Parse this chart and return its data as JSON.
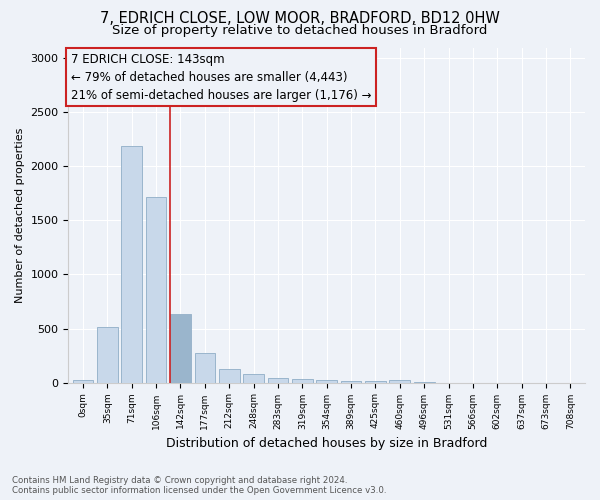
{
  "title1": "7, EDRICH CLOSE, LOW MOOR, BRADFORD, BD12 0HW",
  "title2": "Size of property relative to detached houses in Bradford",
  "xlabel": "Distribution of detached houses by size in Bradford",
  "ylabel": "Number of detached properties",
  "annotation_title": "7 EDRICH CLOSE: 143sqm",
  "annotation_line2": "← 79% of detached houses are smaller (4,443)",
  "annotation_line3": "21% of semi-detached houses are larger (1,176) →",
  "footer1": "Contains HM Land Registry data © Crown copyright and database right 2024.",
  "footer2": "Contains public sector information licensed under the Open Government Licence v3.0.",
  "categories": [
    "0sqm",
    "35sqm",
    "71sqm",
    "106sqm",
    "142sqm",
    "177sqm",
    "212sqm",
    "248sqm",
    "283sqm",
    "319sqm",
    "354sqm",
    "389sqm",
    "425sqm",
    "460sqm",
    "496sqm",
    "531sqm",
    "566sqm",
    "602sqm",
    "637sqm",
    "673sqm",
    "708sqm"
  ],
  "values": [
    20,
    510,
    2190,
    1720,
    630,
    270,
    130,
    80,
    45,
    30,
    20,
    15,
    10,
    25,
    8,
    0,
    0,
    0,
    0,
    0,
    0
  ],
  "bar_color": "#c8d8ea",
  "bar_edge_color": "#9ab5cc",
  "highlight_bar_index": 4,
  "highlight_bar_color": "#9ab5cc",
  "highlight_bar_edge_color": "#9ab5cc",
  "vline_color": "#cc2222",
  "vline_index": 4,
  "ylim": [
    0,
    3100
  ],
  "yticks": [
    0,
    500,
    1000,
    1500,
    2000,
    2500,
    3000
  ],
  "bg_color": "#eef2f8",
  "grid_color": "#ffffff",
  "title1_fontsize": 10.5,
  "title2_fontsize": 9.5,
  "annotation_fontsize": 8.5
}
